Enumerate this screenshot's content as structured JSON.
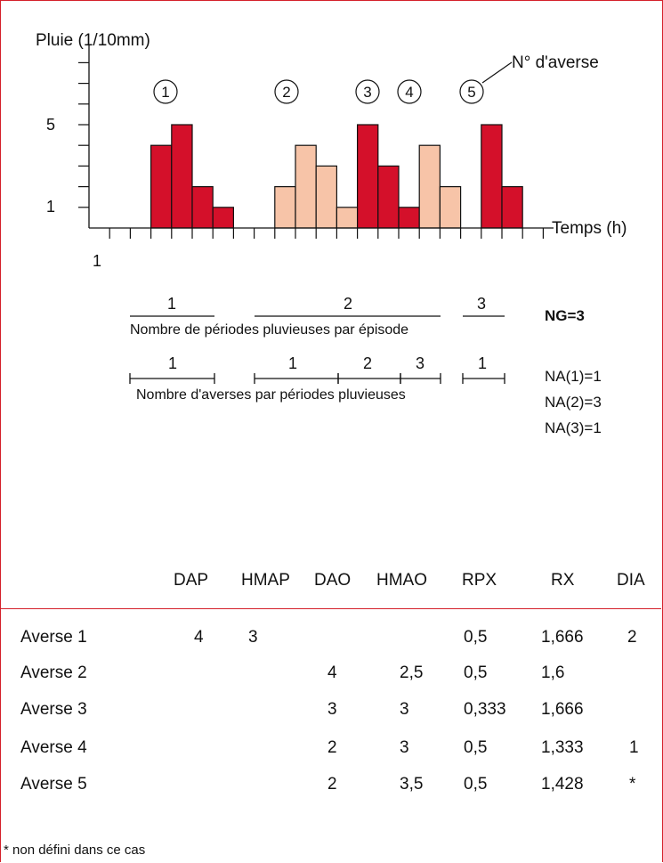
{
  "chart_data": {
    "type": "bar",
    "ylabel": "Pluie (1/10mm)",
    "xlabel": "Temps (h)",
    "x_tick_label": "1",
    "y_tick_labels": [
      "1",
      "5"
    ],
    "series_label": "N° d'averse",
    "colors": {
      "dark": "#d4102a",
      "light": "#f7c4a8",
      "frame": "#d4202a"
    },
    "bars": [
      {
        "x": 3,
        "value": 4,
        "shade": "dark"
      },
      {
        "x": 4,
        "value": 5,
        "shade": "dark"
      },
      {
        "x": 5,
        "value": 2,
        "shade": "dark"
      },
      {
        "x": 6,
        "value": 1,
        "shade": "dark"
      },
      {
        "x": 9,
        "value": 2,
        "shade": "light"
      },
      {
        "x": 10,
        "value": 4,
        "shade": "light"
      },
      {
        "x": 11,
        "value": 3,
        "shade": "light"
      },
      {
        "x": 12,
        "value": 1,
        "shade": "light"
      },
      {
        "x": 13,
        "value": 5,
        "shade": "dark"
      },
      {
        "x": 14,
        "value": 3,
        "shade": "dark"
      },
      {
        "x": 15,
        "value": 1,
        "shade": "dark"
      },
      {
        "x": 16,
        "value": 4,
        "shade": "light"
      },
      {
        "x": 17,
        "value": 2,
        "shade": "light"
      },
      {
        "x": 19,
        "value": 5,
        "shade": "dark"
      },
      {
        "x": 20,
        "value": 2,
        "shade": "dark"
      }
    ],
    "averse_labels": [
      "1",
      "2",
      "3",
      "4",
      "5"
    ]
  },
  "periods": {
    "labels": [
      "1",
      "2",
      "3"
    ],
    "caption": "Nombre de périodes pluvieuses par épisode",
    "ng": "NG=3"
  },
  "averses": {
    "labels": [
      "1",
      "1",
      "2",
      "3",
      "1"
    ],
    "caption": "Nombre d'averses par périodes pluvieuses",
    "na": [
      "NA(1)=1",
      "NA(2)=3",
      "NA(3)=1"
    ]
  },
  "table": {
    "headers": [
      "DAP",
      "HMAP",
      "DAO",
      "HMAO",
      "RPX",
      "RX",
      "DIA"
    ],
    "rows": [
      {
        "name": "Averse 1",
        "cells": [
          "4",
          "3",
          "",
          "",
          "0,5",
          "1,666",
          "2"
        ]
      },
      {
        "name": "Averse 2",
        "cells": [
          "",
          "",
          "4",
          "2,5",
          "0,5",
          "1,6",
          ""
        ]
      },
      {
        "name": "Averse 3",
        "cells": [
          "",
          "",
          "3",
          "3",
          "0,333",
          "1,666",
          ""
        ]
      },
      {
        "name": "Averse 4",
        "cells": [
          "",
          "",
          "2",
          "3",
          "0,5",
          "1,333",
          "1"
        ]
      },
      {
        "name": "Averse 5",
        "cells": [
          "",
          "",
          "2",
          "3,5",
          "0,5",
          "1,428",
          "*"
        ]
      }
    ]
  },
  "footnote": "* non défini dans ce cas"
}
